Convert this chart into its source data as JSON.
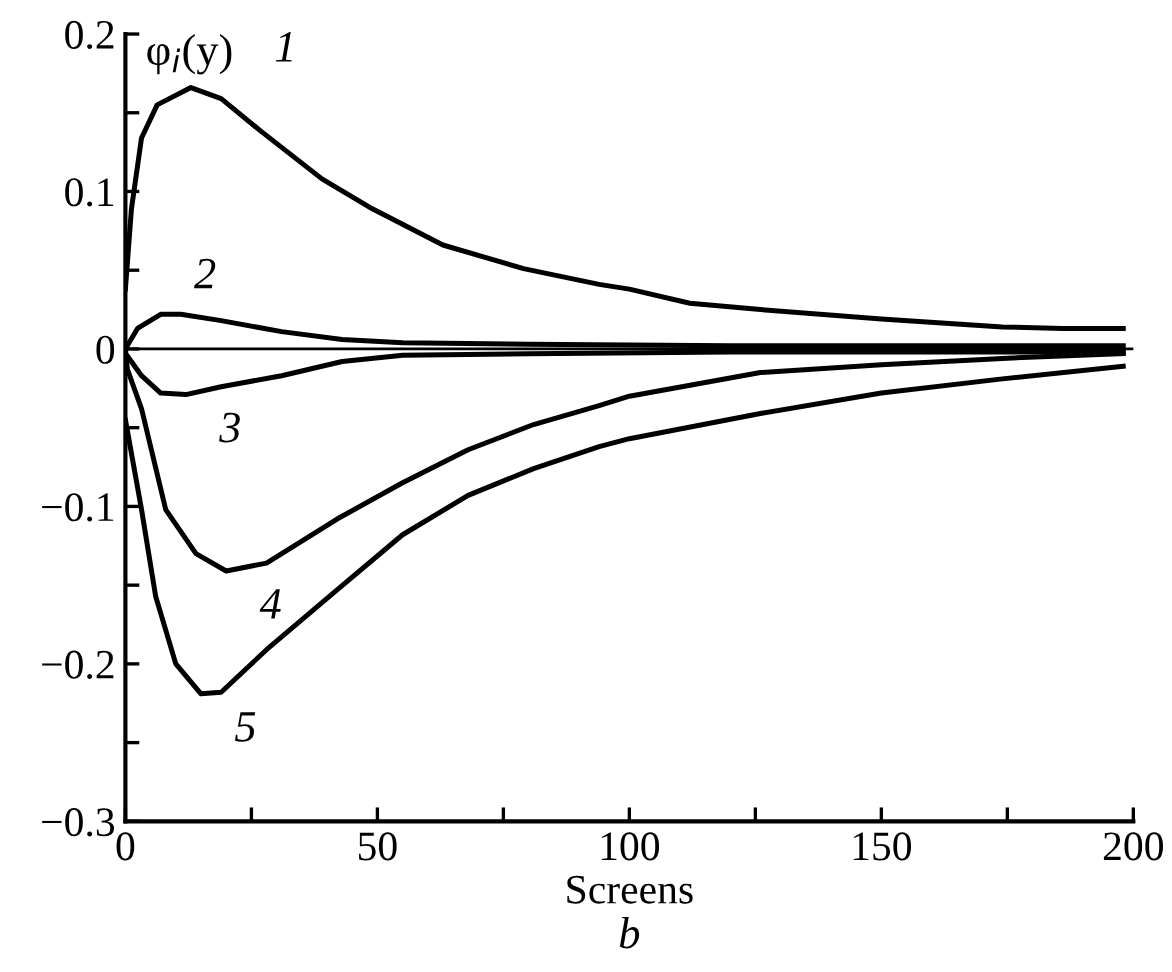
{
  "chart_data": {
    "type": "line",
    "xlabel": "Screens",
    "ylabel": "φ$_{i}$(y)",
    "xlim": [
      0,
      200
    ],
    "ylim": [
      -0.3,
      0.2
    ],
    "xticks": [
      0,
      {
        "value": 25,
        "label": null
      },
      50,
      {
        "value": 75,
        "label": null
      },
      100,
      {
        "value": 125,
        "label": null
      },
      150,
      {
        "value": 175,
        "label": null
      },
      200
    ],
    "yticks": [
      -0.3,
      {
        "value": -0.25,
        "label": null
      },
      -0.2,
      {
        "value": -0.15,
        "label": null
      },
      -0.1,
      {
        "value": -0.05,
        "label": null
      },
      0,
      {
        "value": 0.05,
        "label": null
      },
      0.1,
      {
        "value": 0.15,
        "label": null
      },
      0.2
    ],
    "grid": false,
    "legend": false,
    "marker": "none",
    "line_style": "solid",
    "ref_lines": [
      {
        "axis": "y",
        "value": 0,
        "color": "#000000"
      }
    ],
    "series": [
      {
        "name": "1",
        "color": "#000000",
        "x": [
          0,
          1.2,
          3.2,
          6.3,
          13,
          19,
          27,
          39,
          49,
          63,
          79,
          94,
          100,
          112,
          126,
          150,
          174,
          186,
          198
        ],
        "values": [
          0.038,
          0.089,
          0.134,
          0.155,
          0.166,
          0.159,
          0.138,
          0.108,
          0.089,
          0.066,
          0.051,
          0.041,
          0.038,
          0.029,
          0.025,
          0.019,
          0.014,
          0.013,
          0.013
        ]
      },
      {
        "name": "2",
        "color": "#000000",
        "x": [
          0,
          2.4,
          7,
          11,
          19,
          31,
          43,
          55,
          80,
          120,
          198
        ],
        "values": [
          0,
          0.013,
          0.022,
          0.022,
          0.018,
          0.011,
          0.006,
          0.004,
          0.003,
          0.002,
          0.002
        ]
      },
      {
        "name": "3",
        "color": "#000000",
        "x": [
          0.5,
          3.2,
          7,
          12,
          19,
          31,
          43,
          55,
          80,
          120,
          198
        ],
        "values": [
          -0.005,
          -0.017,
          -0.028,
          -0.029,
          -0.024,
          -0.017,
          -0.008,
          -0.004,
          -0.003,
          -0.002,
          -0.002
        ]
      },
      {
        "name": "4",
        "color": "#000000",
        "x": [
          0,
          0.4,
          3.2,
          8,
          14,
          20,
          28,
          42,
          55,
          68,
          81,
          94,
          100,
          126,
          150,
          174,
          198
        ],
        "values": [
          0,
          -0.013,
          -0.038,
          -0.102,
          -0.13,
          -0.141,
          -0.136,
          -0.108,
          -0.085,
          -0.064,
          -0.048,
          -0.036,
          -0.03,
          -0.015,
          -0.01,
          -0.006,
          -0.003
        ]
      },
      {
        "name": "5",
        "color": "#000000",
        "x": [
          0,
          3.2,
          6,
          10,
          15,
          19,
          28,
          42,
          55,
          68,
          81,
          94,
          100,
          126,
          150,
          174,
          198
        ],
        "values": [
          -0.045,
          -0.102,
          -0.157,
          -0.2,
          -0.219,
          -0.218,
          -0.191,
          -0.153,
          -0.118,
          -0.093,
          -0.076,
          -0.062,
          -0.057,
          -0.041,
          -0.028,
          -0.019,
          -0.011
        ]
      }
    ],
    "annotations": [
      "b"
    ]
  }
}
